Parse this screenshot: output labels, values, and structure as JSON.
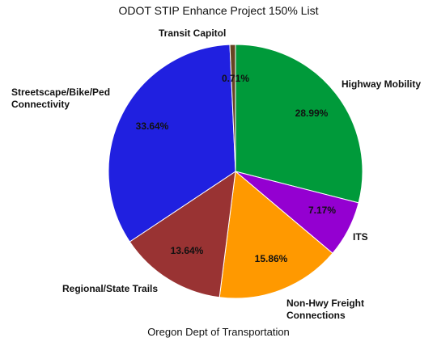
{
  "chart_data": {
    "type": "pie",
    "title": "ODOT STIP Enhance Project 150% List",
    "footer": "Oregon Dept of Transportation",
    "slices": [
      {
        "label": [
          "Highway Mobility"
        ],
        "value": 28.99,
        "percent_label": "28.99%",
        "color": "#009a3a"
      },
      {
        "label": [
          "ITS"
        ],
        "value": 7.17,
        "percent_label": "7.17%",
        "color": "#9400d1"
      },
      {
        "label": [
          "Non-Hwy Freight",
          "Connections"
        ],
        "value": 15.86,
        "percent_label": "15.86%",
        "color": "#ff9900"
      },
      {
        "label": [
          "Regional/State Trails"
        ],
        "value": 13.64,
        "percent_label": "13.64%",
        "color": "#993333"
      },
      {
        "label": [
          "Streetscape/Bike/Ped",
          "Connectivity"
        ],
        "value": 33.64,
        "percent_label": "33.64%",
        "color": "#2020e0"
      },
      {
        "label": [
          "Transit Capitol"
        ],
        "value": 0.71,
        "percent_label": "0.71%",
        "color": "#664422"
      }
    ]
  }
}
